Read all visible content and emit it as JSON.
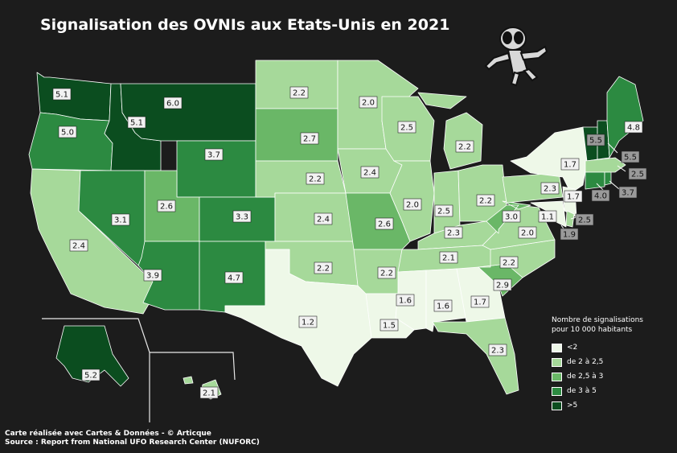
{
  "title": "Signalisation des OVNIs aux Etats-Unis en 2021",
  "legend": {
    "title_line1": "Nombre de signalisations",
    "title_line2": "pour 10 000 habitants",
    "items": [
      {
        "label": "<2",
        "color": "#eef8e8"
      },
      {
        "label": "de 2 à 2,5",
        "color": "#a6d99a"
      },
      {
        "label": "de 2,5 à 3",
        "color": "#6ab767"
      },
      {
        "label": "de 3 à 5",
        "color": "#2c8a41"
      },
      {
        "label": ">5",
        "color": "#0b4d1f"
      }
    ]
  },
  "states": {
    "WA": "5.1",
    "OR": "5.0",
    "CA": "2.4",
    "ID": "5.1",
    "NV": "3.1",
    "MT": "6.0",
    "WY": "3.7",
    "UT": "2.6",
    "AZ": "3.9",
    "CO": "3.3",
    "NM": "4.7",
    "ND": "2.2",
    "SD": "2.7",
    "NE": "2.2",
    "KS": "2.4",
    "OK": "2.2",
    "TX": "1.2",
    "MN": "2.0",
    "IA": "2.4",
    "MO": "2.6",
    "AR": "2.2",
    "LA": "1.5",
    "WI": "2.5",
    "IL": "2.0",
    "MI": "2.2",
    "IN": "2.5",
    "OH": "2.2",
    "KY": "2.3",
    "TN": "2.1",
    "MS": "1.6",
    "AL": "1.6",
    "GA": "1.7",
    "FL": "2.3",
    "SC": "2.9",
    "NC": "2.2",
    "VA": "2.0",
    "WV": "3.0",
    "PA": "2.3",
    "NY": "1.7",
    "VT": "5.5",
    "NH": "5.5",
    "ME": "4.8",
    "MA": "2.5",
    "RI": "3.7",
    "CT": "4.0",
    "NJ": "1.7",
    "DE": "2.5",
    "MD": "1.9",
    "DC": "1.1",
    "AK": "5.2",
    "HI": "2.1"
  },
  "credits": {
    "line1": "Carte réalisée avec Cartes & Données - © Articque",
    "line2": "Source : Report from National UFO Research Center (NUFORC)"
  }
}
